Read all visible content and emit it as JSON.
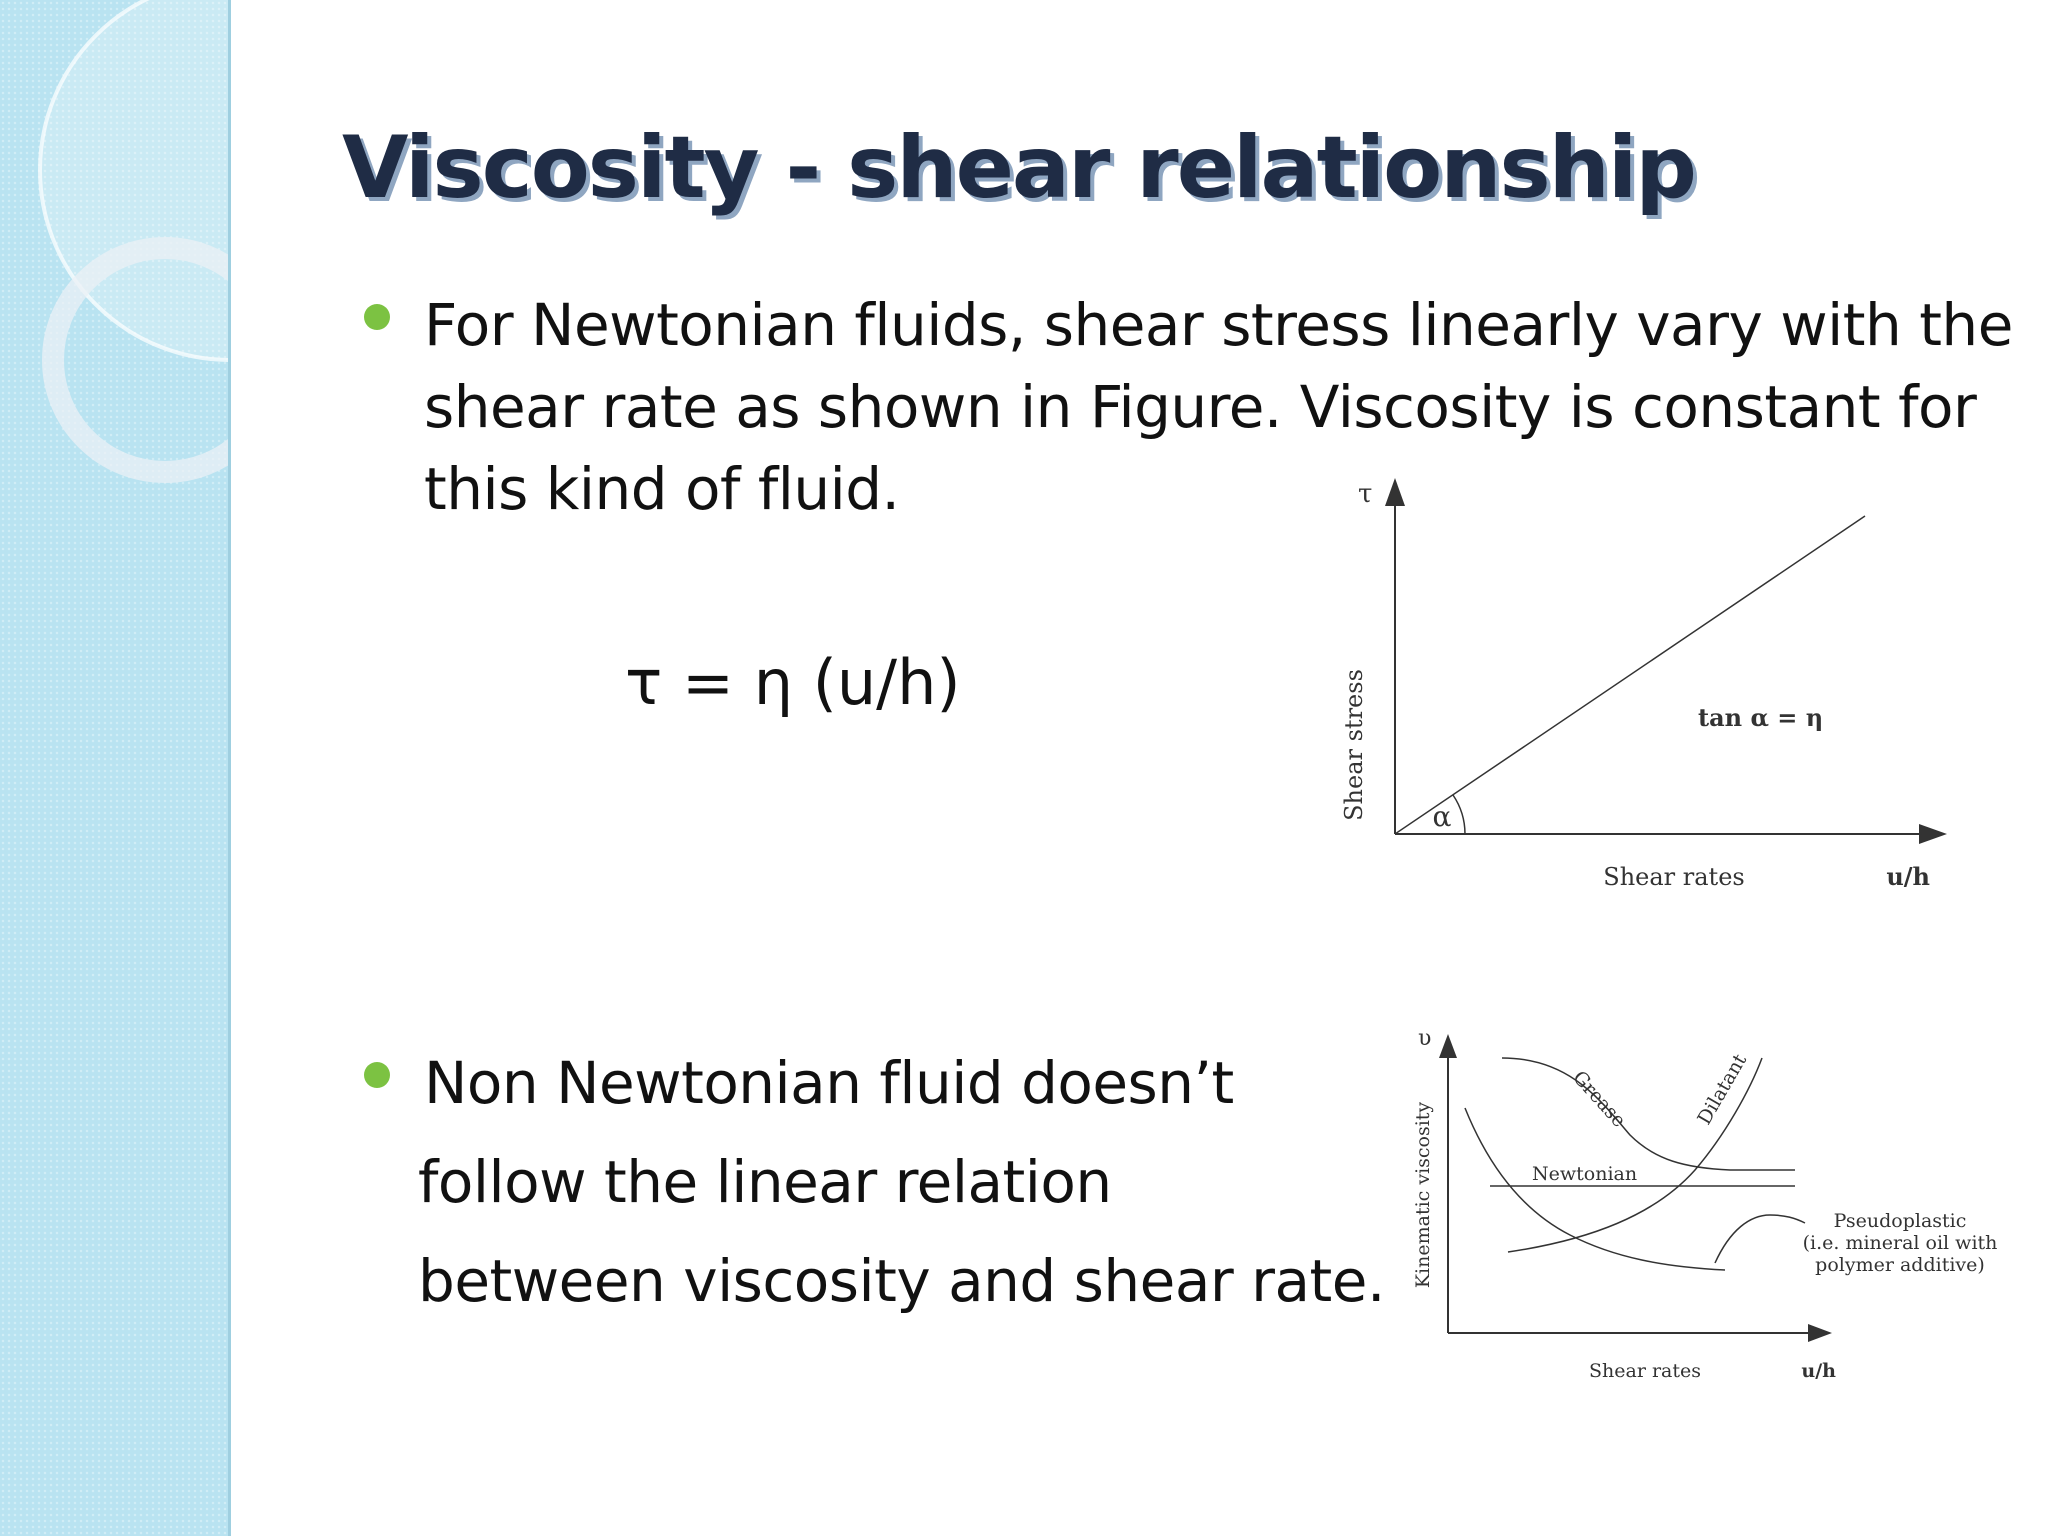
{
  "slide": {
    "title": "Viscosity - shear relationship",
    "bullet1": {
      "lines": [
        "For Newtonian fluids, shear stress linearly vary with the",
        "shear rate as shown in Figure. Viscosity is constant for",
        "this kind of fluid."
      ]
    },
    "equation": "τ = η (u/h)",
    "bullet2": {
      "lines": [
        "Non Newtonian fluid doesn’t",
        "follow the linear relation",
        "between viscosity and shear rate."
      ]
    }
  },
  "figure1": {
    "y_symbol": "τ",
    "ylabel": "Shear stress",
    "xlabel": "Shear rates",
    "x_unit": "u/h",
    "angle_label": "α",
    "annotation": "tan α = η"
  },
  "figure2": {
    "y_symbol": "υ",
    "ylabel": "Kinematic viscosity",
    "xlabel": "Shear rates",
    "x_unit": "u/h",
    "curve_labels": {
      "grease": "Grease",
      "dilatant": "Dilatant",
      "newtonian": "Newtonian",
      "pseudoplastic": [
        "Pseudoplastic",
        "(i.e. mineral oil with",
        "polymer additive)"
      ]
    }
  },
  "colors": {
    "title": "#1f2c45",
    "title_shadow": "#8fa6c1",
    "bullet": "#7cc242",
    "sidebar": "#b9e3f1"
  }
}
